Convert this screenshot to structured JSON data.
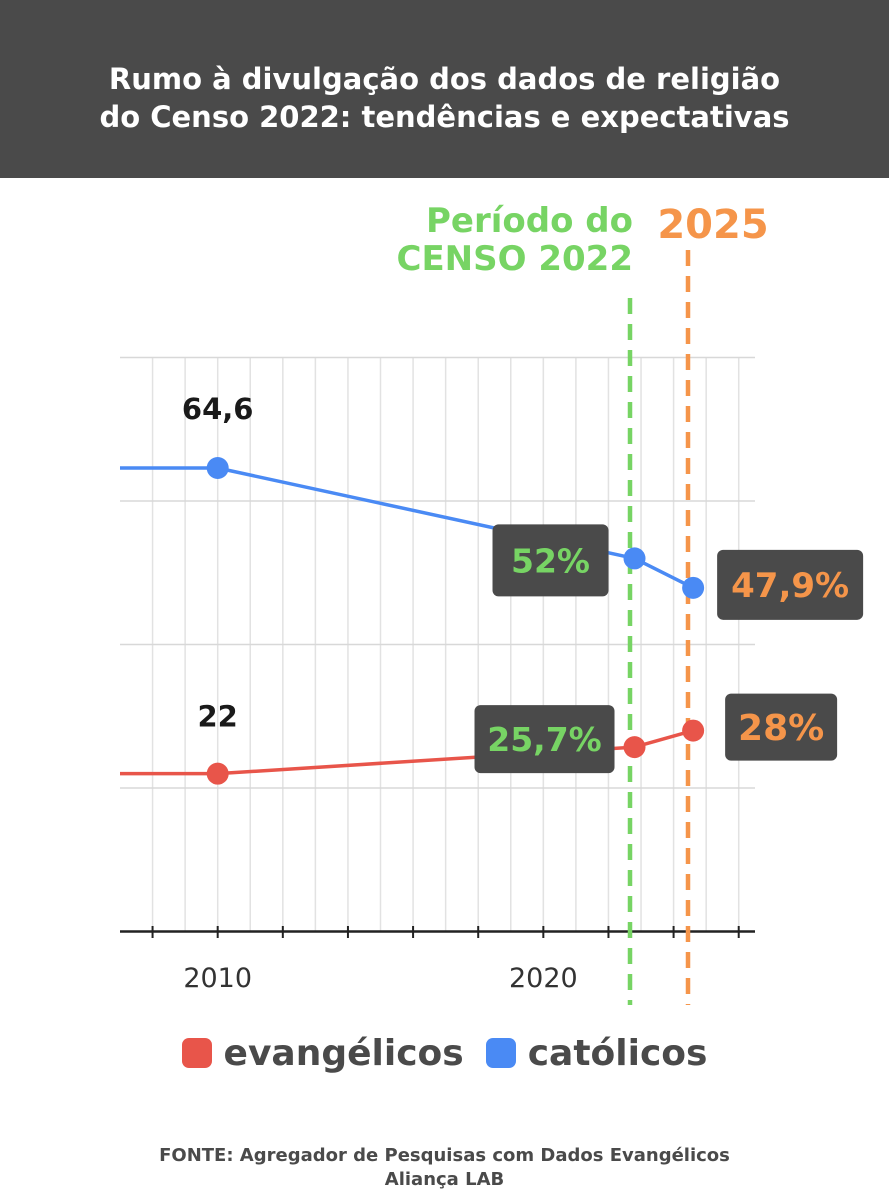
{
  "header": {
    "title_line1": "Rumo à divulgação dos dados de religião",
    "title_line2": "do Censo 2022: tendências e expectativas"
  },
  "colors": {
    "header_bg": "#4a4a4a",
    "evangelicos": "#e8554a",
    "catolicos": "#4a8af4",
    "censo_green": "#77d464",
    "year_orange": "#f5954a",
    "label_box": "#4a4a4a"
  },
  "chart_data": {
    "type": "line",
    "xlim": [
      2007,
      2026.5
    ],
    "x_ticks": [
      2010,
      2020
    ],
    "grid": true,
    "legend_position": "bottom",
    "series": [
      {
        "name": "evangélicos",
        "color": "#e8554a",
        "x": [
          2007,
          2010,
          2022.8,
          2024.6
        ],
        "y": [
          22,
          22,
          25.7,
          28
        ],
        "markers": [
          {
            "x": 2010,
            "y": 22,
            "label": "22"
          },
          {
            "x": 2022.8,
            "y": 25.7,
            "label": "25,7%"
          },
          {
            "x": 2024.6,
            "y": 28,
            "label": "28%"
          }
        ]
      },
      {
        "name": "católicos",
        "color": "#4a8af4",
        "x": [
          2007,
          2010,
          2022.8,
          2024.6
        ],
        "y": [
          64.6,
          64.6,
          52,
          47.9
        ],
        "markers": [
          {
            "x": 2010,
            "y": 64.6,
            "label": "64,6"
          },
          {
            "x": 2022.8,
            "y": 52,
            "label": "52%"
          },
          {
            "x": 2024.6,
            "y": 47.9,
            "label": "47,9%"
          }
        ]
      }
    ],
    "vlines": [
      {
        "x": 2023,
        "label_line1": "Período do",
        "label_line2": "CENSO 2022",
        "color": "#77d464"
      },
      {
        "x": 2025,
        "label_line1": "2025",
        "label_line2": "",
        "color": "#f5954a"
      }
    ]
  },
  "legend": {
    "items": [
      {
        "label": "evangélicos",
        "color": "#e8554a"
      },
      {
        "label": "católicos",
        "color": "#4a8af4"
      }
    ]
  },
  "source": {
    "line1": "FONTE: Agregador de Pesquisas com Dados Evangélicos",
    "line2": "Aliança LAB"
  }
}
